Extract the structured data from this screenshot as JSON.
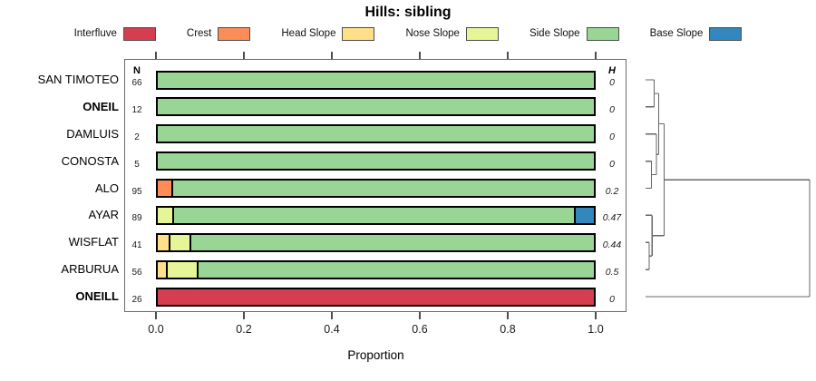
{
  "title": "Hills: sibling",
  "legend": [
    {
      "label": "Interfluve",
      "color": "#d53e4f"
    },
    {
      "label": "Crest",
      "color": "#fc8d59"
    },
    {
      "label": "Head Slope",
      "color": "#fee08b"
    },
    {
      "label": "Nose Slope",
      "color": "#e6f598"
    },
    {
      "label": "Side Slope",
      "color": "#99d594"
    },
    {
      "label": "Base Slope",
      "color": "#3288bd"
    }
  ],
  "columns": {
    "n_header": "N",
    "h_header": "H"
  },
  "xaxis": {
    "label": "Proportion",
    "ticks": [
      "0.0",
      "0.2",
      "0.4",
      "0.6",
      "0.8",
      "1.0"
    ],
    "range": [
      0,
      1
    ]
  },
  "chart_data": {
    "type": "bar",
    "stacked": true,
    "orientation": "horizontal",
    "title": "Hills: sibling",
    "xlabel": "Proportion",
    "xlim": [
      0,
      1
    ],
    "grid": false,
    "legend_position": "top",
    "series_order": [
      "Interfluve",
      "Crest",
      "Head Slope",
      "Nose Slope",
      "Side Slope",
      "Base Slope"
    ],
    "categories": [
      "SAN TIMOTEO",
      "ONEIL",
      "DAMLUIS",
      "CONOSTA",
      "ALO",
      "AYAR",
      "WISFLAT",
      "ARBURUA",
      "ONEILL"
    ],
    "rows": [
      {
        "name": "SAN TIMOTEO",
        "bold": false,
        "n": 66,
        "h": "0",
        "segments": [
          {
            "class": "Side Slope",
            "value": 1.0
          }
        ]
      },
      {
        "name": "ONEIL",
        "bold": true,
        "n": 12,
        "h": "0",
        "segments": [
          {
            "class": "Side Slope",
            "value": 1.0
          }
        ]
      },
      {
        "name": "DAMLUIS",
        "bold": false,
        "n": 2,
        "h": "0",
        "segments": [
          {
            "class": "Side Slope",
            "value": 1.0
          }
        ]
      },
      {
        "name": "CONOSTA",
        "bold": false,
        "n": 5,
        "h": "0",
        "segments": [
          {
            "class": "Side Slope",
            "value": 1.0
          }
        ]
      },
      {
        "name": "ALO",
        "bold": false,
        "n": 95,
        "h": "0.2",
        "segments": [
          {
            "class": "Crest",
            "value": 0.032
          },
          {
            "class": "Side Slope",
            "value": 0.968
          }
        ]
      },
      {
        "name": "AYAR",
        "bold": false,
        "n": 89,
        "h": "0.47",
        "segments": [
          {
            "class": "Nose Slope",
            "value": 0.034
          },
          {
            "class": "Side Slope",
            "value": 0.921
          },
          {
            "class": "Base Slope",
            "value": 0.045
          }
        ]
      },
      {
        "name": "WISFLAT",
        "bold": false,
        "n": 41,
        "h": "0.44",
        "segments": [
          {
            "class": "Head Slope",
            "value": 0.024
          },
          {
            "class": "Nose Slope",
            "value": 0.049
          },
          {
            "class": "Side Slope",
            "value": 0.927
          }
        ]
      },
      {
        "name": "ARBURUA",
        "bold": false,
        "n": 56,
        "h": "0.5",
        "segments": [
          {
            "class": "Head Slope",
            "value": 0.018
          },
          {
            "class": "Nose Slope",
            "value": 0.071
          },
          {
            "class": "Side Slope",
            "value": 0.911
          }
        ]
      },
      {
        "name": "ONEILL",
        "bold": true,
        "n": 26,
        "h": "0",
        "segments": [
          {
            "class": "Interfluve",
            "value": 1.0
          }
        ]
      }
    ],
    "dendrogram": {
      "description": "hierarchical clustering of categories, heights normalized 0-1",
      "tree": {
        "h": 1.0,
        "children": [
          {
            "h": 0.113,
            "children": [
              {
                "h": 0.08,
                "children": [
                  {
                    "h": 0.0525,
                    "children": [
                      {
                        "leaf": 0
                      },
                      {
                        "leaf": 1
                      }
                    ]
                  },
                  {
                    "h": 0.066,
                    "children": [
                      {
                        "leaf": 2
                      },
                      {
                        "h": 0.036,
                        "children": [
                          {
                            "leaf": 3
                          },
                          {
                            "leaf": 4
                          }
                        ]
                      }
                    ]
                  }
                ]
              },
              {
                "h": 0.04,
                "children": [
                  {
                    "leaf": 5
                  },
                  {
                    "h": 0.022,
                    "children": [
                      {
                        "leaf": 6
                      },
                      {
                        "leaf": 7
                      }
                    ]
                  }
                ]
              }
            ]
          },
          {
            "leaf": 8
          }
        ]
      }
    }
  }
}
